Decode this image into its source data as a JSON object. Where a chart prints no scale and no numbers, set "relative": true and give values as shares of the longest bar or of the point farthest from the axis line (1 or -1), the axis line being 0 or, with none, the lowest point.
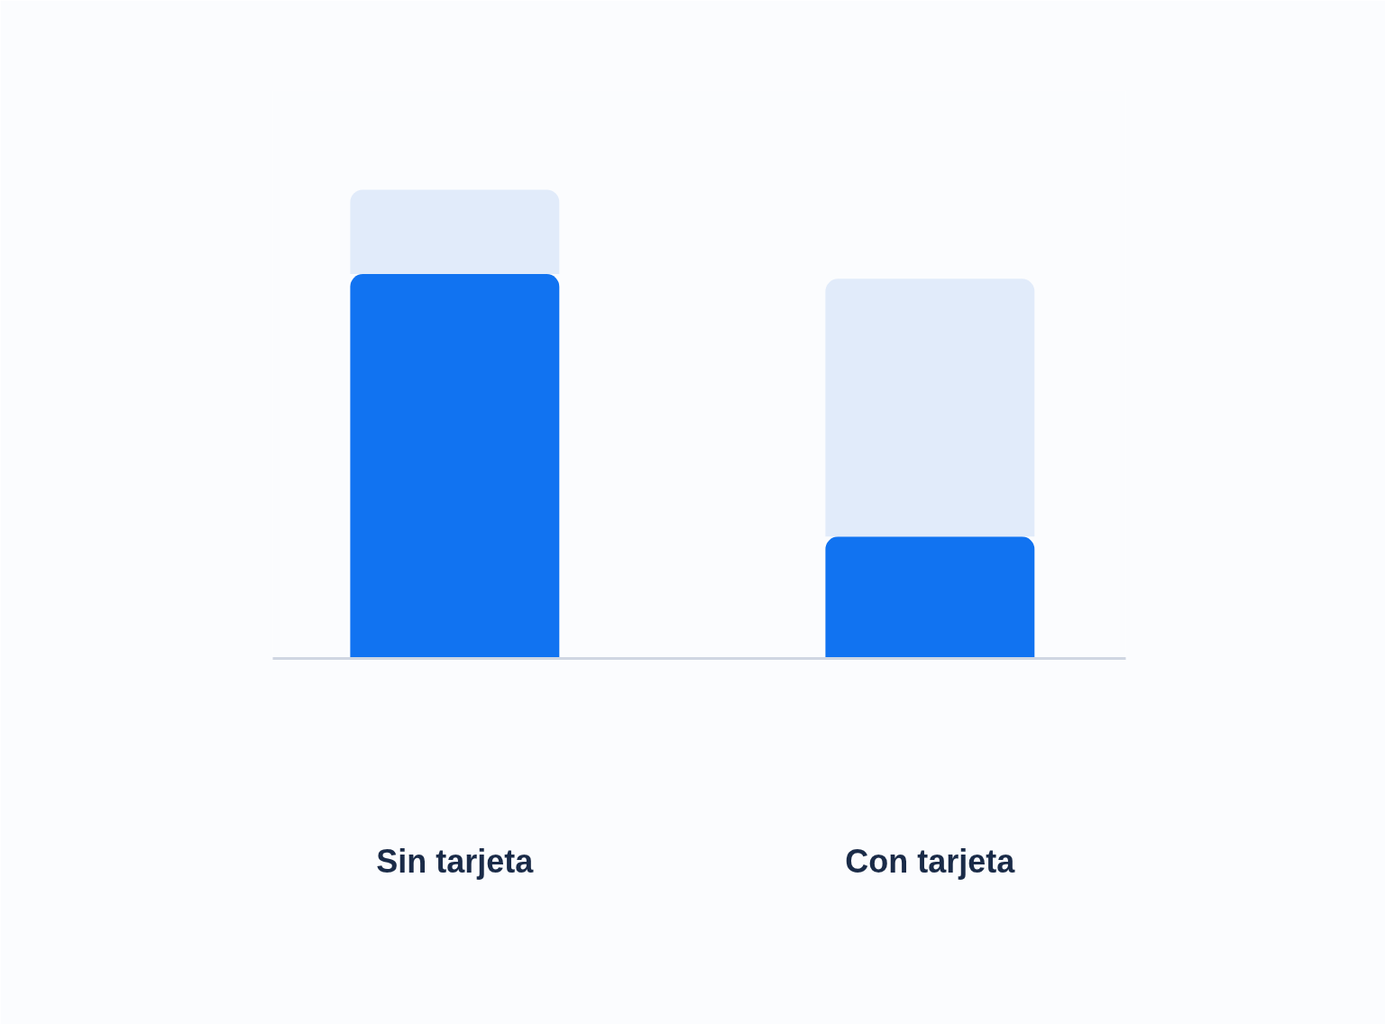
{
  "chart_data": {
    "type": "bar",
    "relative": true,
    "stacked": true,
    "grid": false,
    "categories": [
      "Sin tarjeta",
      "Con tarjeta"
    ],
    "series": [
      {
        "color": "#1173f1",
        "values": [
          0.82,
          0.26
        ]
      },
      {
        "color": "#e1ebfa",
        "values": [
          0.18,
          0.55
        ]
      }
    ]
  }
}
